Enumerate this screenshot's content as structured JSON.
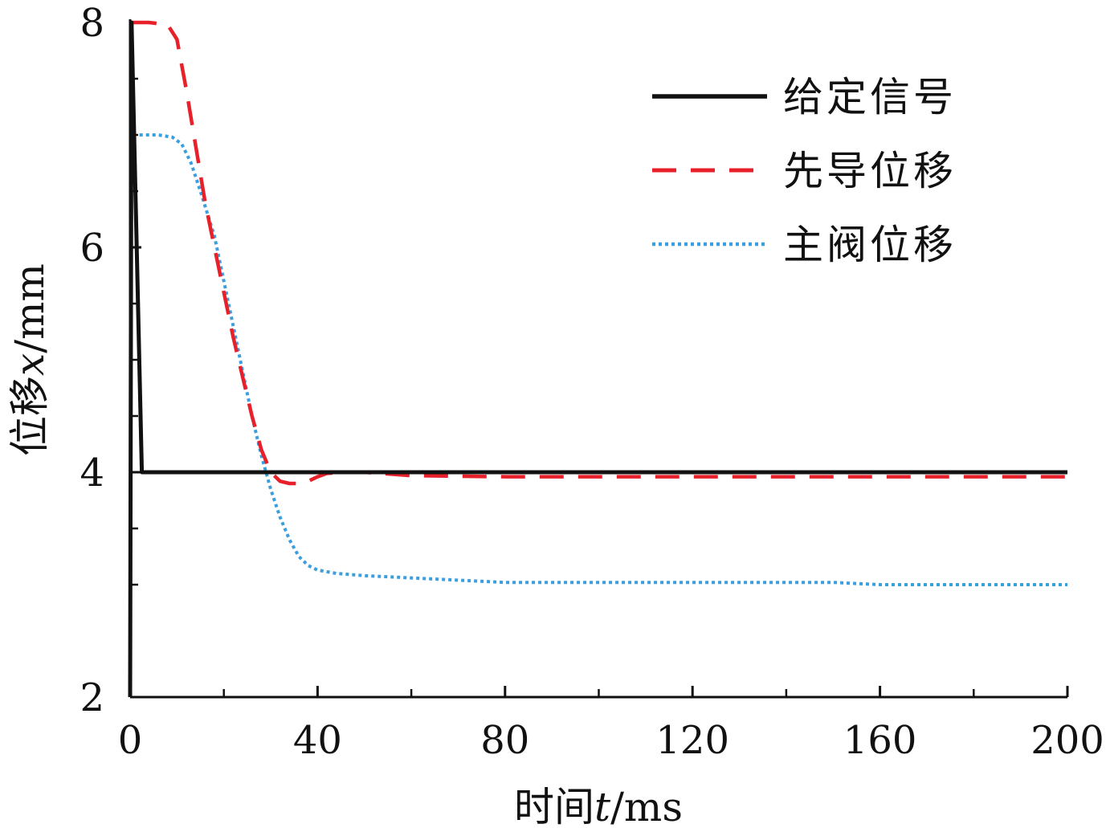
{
  "chart_data": {
    "type": "line",
    "xlabel": {
      "prefix": "时间",
      "var": "t",
      "unit": "/ms"
    },
    "ylabel": {
      "prefix": "位移",
      "var": "x",
      "unit": "/mm"
    },
    "xlim": [
      0,
      200
    ],
    "ylim": [
      2,
      8
    ],
    "x_ticks": [
      0,
      40,
      80,
      120,
      160,
      200
    ],
    "x_minor_ticks": [
      20,
      60,
      100,
      140,
      180
    ],
    "y_ticks": [
      2,
      4,
      6,
      8
    ],
    "y_minor_ticks": [
      3,
      3.5,
      4.5,
      5,
      5.5,
      6.5,
      7,
      7.5
    ],
    "grid": false,
    "legend_position": "top-right",
    "series": [
      {
        "name": "给定信号",
        "color": "#111111",
        "style": "solid",
        "x": [
          0,
          0.3,
          2.5,
          200
        ],
        "y": [
          2,
          8,
          4,
          4
        ]
      },
      {
        "name": "先导位移",
        "color": "#e8202a",
        "style": "dashed",
        "x": [
          0.5,
          4,
          8,
          10,
          12,
          14,
          16,
          18,
          20,
          22,
          24,
          26,
          28,
          30,
          32,
          34,
          36,
          38,
          40,
          42,
          46,
          50,
          60,
          80,
          100,
          150,
          200
        ],
        "y": [
          8,
          8,
          7.98,
          7.85,
          7.4,
          6.9,
          6.4,
          6.0,
          5.6,
          5.2,
          4.85,
          4.5,
          4.2,
          4.0,
          3.92,
          3.9,
          3.9,
          3.92,
          3.96,
          3.99,
          4.0,
          4.0,
          3.97,
          3.96,
          3.96,
          3.96,
          3.96
        ]
      },
      {
        "name": "主阀位移",
        "color": "#3b9ede",
        "style": "dotted",
        "x": [
          2,
          6,
          9,
          11,
          13,
          15,
          18,
          20,
          22,
          24,
          26,
          28,
          30,
          32,
          34,
          36,
          38,
          40,
          44,
          50,
          60,
          70,
          80,
          100,
          120,
          150,
          160,
          200
        ],
        "y": [
          7,
          7,
          6.98,
          6.92,
          6.75,
          6.5,
          6.1,
          5.7,
          5.3,
          4.9,
          4.5,
          4.15,
          3.85,
          3.6,
          3.4,
          3.25,
          3.17,
          3.13,
          3.1,
          3.08,
          3.06,
          3.04,
          3.02,
          3.02,
          3.02,
          3.02,
          3.0,
          3.0
        ]
      }
    ]
  }
}
